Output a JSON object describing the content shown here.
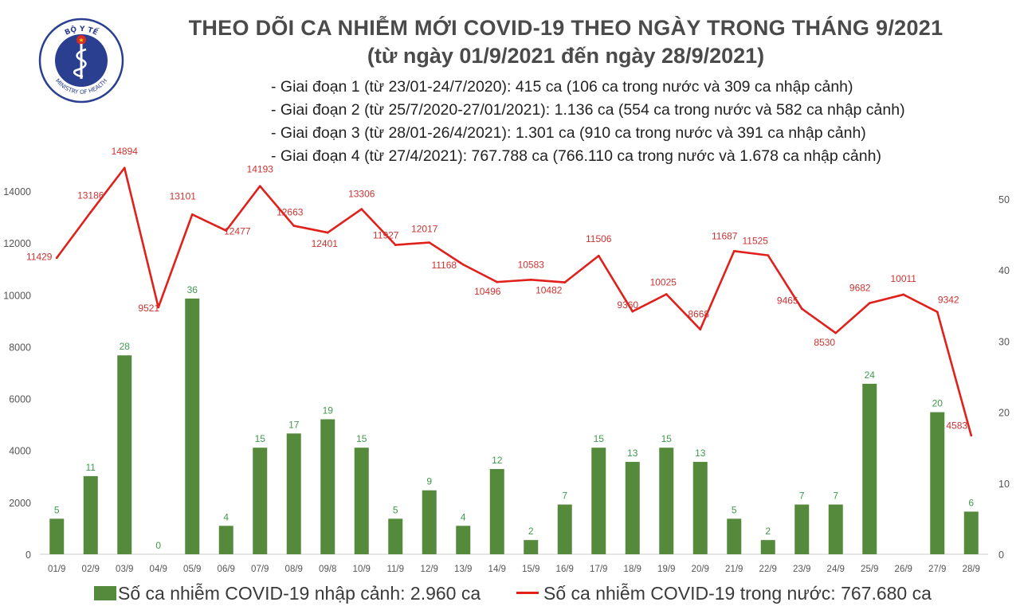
{
  "logo": {
    "top_text": "BỘ Y TẾ",
    "bottom_text": "MINISTRY OF HEALTH"
  },
  "header": {
    "title": "THEO DÕI CA NHIỄM MỚI COVID-19 THEO NGÀY TRONG THÁNG 9/2021",
    "subtitle": "(từ ngày 01/9/2021 đến ngày 28/9/2021)"
  },
  "phases": [
    "- Giai đoạn 1 (từ 23/01-24/7/2020): 415 ca (106 ca trong nước và 309 ca nhập cảnh)",
    "- Giai đoạn 2 (từ 25/7/2020-27/01/2021): 1.136 ca (554 ca trong nước và 582 ca nhập cảnh)",
    "- Giai đoạn 3 (từ 28/01-26/4/2021): 1.301 ca (910 ca trong nước và 391 ca nhập cảnh)",
    "- Giai đoạn 4 (từ 27/4/2021): 767.788 ca (766.110 ca trong nước và 1.678 ca nhập cảnh)"
  ],
  "colors": {
    "bar": "#55893c",
    "bar_label": "#3f9a4e",
    "line": "#e0201b",
    "line_label": "#cc3333",
    "axis_text": "#555555"
  },
  "chart_data": {
    "type": "bar+line",
    "categories": [
      "01/9",
      "02/9",
      "03/9",
      "04/9",
      "05/9",
      "06/9",
      "07/9",
      "08/9",
      "09/8",
      "10/9",
      "11/9",
      "12/9",
      "13/9",
      "14/9",
      "15/9",
      "16/9",
      "17/9",
      "18/9",
      "19/9",
      "20/9",
      "21/9",
      "22/9",
      "23/9",
      "24/9",
      "25/9",
      "26/9",
      "27/9",
      "28/9"
    ],
    "bar_series": {
      "name": "Số ca nhiễm COVID-19 nhập cảnh: 2.960 ca",
      "axis": "right",
      "values": [
        5,
        11,
        28,
        0,
        36,
        4,
        15,
        17,
        19,
        15,
        5,
        9,
        4,
        12,
        2,
        7,
        15,
        13,
        15,
        13,
        5,
        2,
        7,
        7,
        24,
        null,
        20,
        6
      ],
      "labels": [
        "5",
        "11",
        "28",
        "0",
        "36",
        "4",
        "15",
        "17",
        "19",
        "15",
        "5",
        "9",
        "4",
        "12",
        "2",
        "7",
        "15",
        "13",
        "15",
        "13",
        "5",
        "2",
        "7",
        "7",
        "24",
        "",
        "20",
        "6"
      ]
    },
    "line_series": {
      "name": "Số ca nhiễm COVID-19 trong nước: 767.680 ca",
      "axis": "left",
      "values": [
        11429,
        13186,
        14894,
        9521,
        13101,
        12477,
        14193,
        12663,
        12401,
        13306,
        11927,
        12017,
        11168,
        10496,
        10583,
        10482,
        11506,
        9360,
        10025,
        8668,
        11687,
        11525,
        9465,
        8530,
        9682,
        10011,
        9342,
        4583
      ],
      "labels": [
        "11429",
        "13186",
        "14894",
        "9521",
        "13101",
        "12477",
        "14193",
        "12663",
        "12401",
        "13306",
        "11927",
        "12017",
        "11168",
        "10496",
        "10583",
        "10482",
        "11506",
        "9360",
        "10025",
        "8668",
        "11687",
        "11525",
        "9465",
        "8530",
        "9682",
        "10011",
        "9342",
        "4583"
      ]
    },
    "left_axis": {
      "min": 0,
      "max": 14000,
      "ticks": [
        "0",
        "2000",
        "4000",
        "6000",
        "8000",
        "10000",
        "12000",
        "14000"
      ]
    },
    "right_axis": {
      "min": 0,
      "max": 50,
      "ticks": [
        "0",
        "10",
        "20",
        "30",
        "40",
        "50"
      ]
    }
  }
}
